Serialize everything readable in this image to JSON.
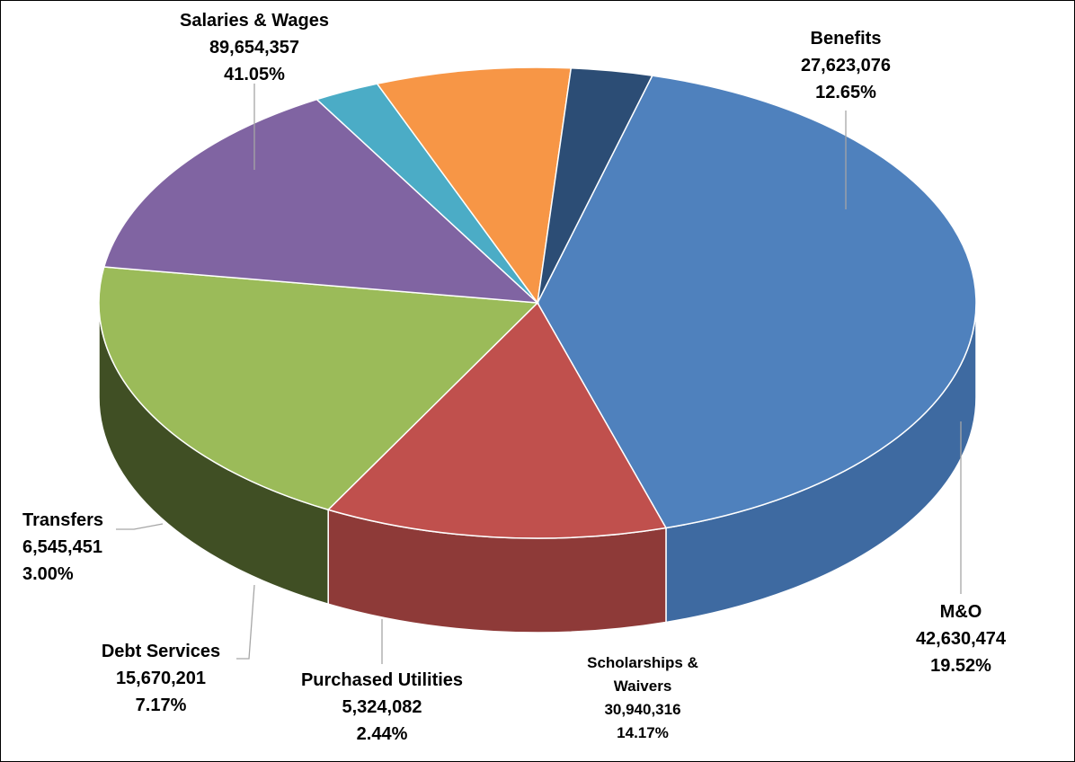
{
  "chart_data": {
    "type": "pie",
    "variant": "3d",
    "title": "",
    "slices": [
      {
        "label": "Salaries & Wages",
        "value": 89654357,
        "value_text": "89,654,357",
        "percent_text": "41.05%",
        "color": "#4f81bd",
        "side_color": "#3e6aa1"
      },
      {
        "label": "Benefits",
        "value": 27623076,
        "value_text": "27,623,076",
        "percent_text": "12.65%",
        "color": "#c0504d",
        "side_color": "#8e3a38"
      },
      {
        "label": "M&O",
        "value": 42630474,
        "value_text": "42,630,474",
        "percent_text": "19.52%",
        "color": "#9bbb59",
        "side_color": "#404f24"
      },
      {
        "label": "Scholarships & Waivers",
        "label_lines": [
          "Scholarships &",
          "Waivers"
        ],
        "value": 30940316,
        "value_text": "30,940,316",
        "percent_text": "14.17%",
        "color": "#8064a2",
        "side_color": "#3e2f52"
      },
      {
        "label": "Purchased Utilities",
        "value": 5324082,
        "value_text": "5,324,082",
        "percent_text": "2.44%",
        "color": "#4bacc6",
        "side_color": "#31859c"
      },
      {
        "label": "Debt Services",
        "value": 15670201,
        "value_text": "15,670,201",
        "percent_text": "7.17%",
        "color": "#f79646",
        "side_color": "#c46d2a"
      },
      {
        "label": "Transfers",
        "value": 6545451,
        "value_text": "6,545,451",
        "percent_text": "3.00%",
        "color": "#2c4d75",
        "side_color": "#1f3a5b"
      }
    ],
    "legend": "none"
  }
}
